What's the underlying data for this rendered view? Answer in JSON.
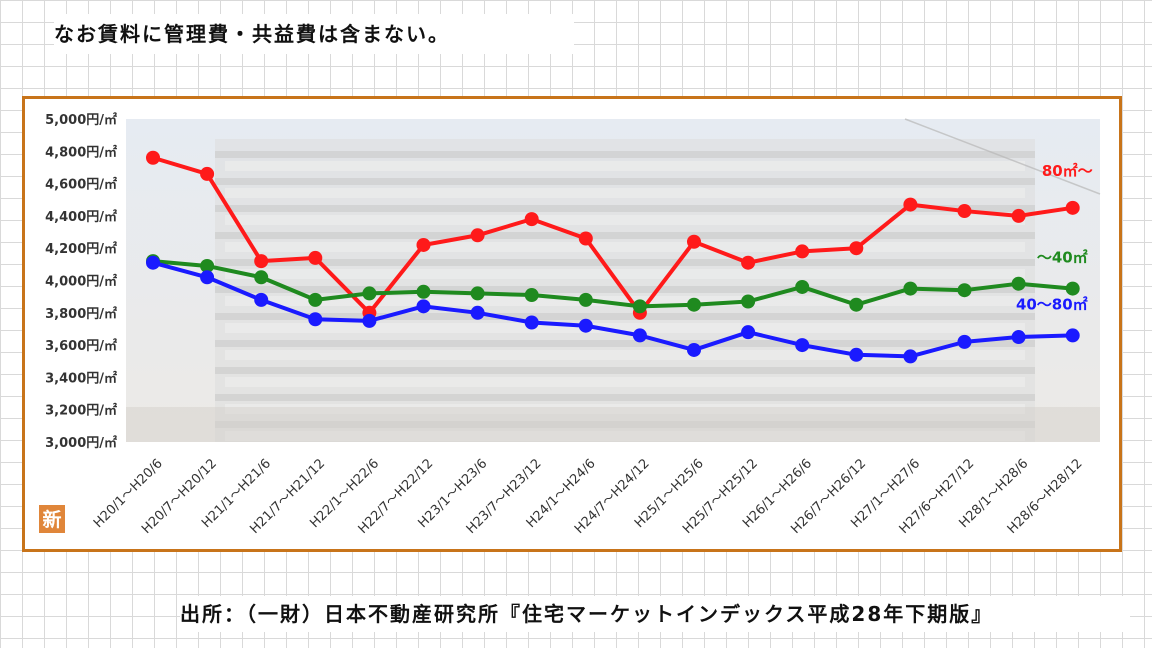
{
  "note_text": "なお賃料に管理費・共益費は含まない。",
  "source_text": "出所：（一財）日本不動産研究所『住宅マーケットインデックス平成28年下期版』",
  "badge_text": "新",
  "chart_data": {
    "type": "line",
    "title": "",
    "xlabel": "",
    "ylabel": "",
    "ylim": [
      3000,
      5000
    ],
    "yticks": [
      3000,
      3200,
      3400,
      3600,
      3800,
      4000,
      4200,
      4400,
      4600,
      4800,
      5000
    ],
    "ytick_labels": [
      "3,000円/㎡",
      "3,200円/㎡",
      "3,400円/㎡",
      "3,600円/㎡",
      "3,800円/㎡",
      "4,000円/㎡",
      "4,200円/㎡",
      "4,400円/㎡",
      "4,600円/㎡",
      "4,800円/㎡",
      "5,000円/㎡"
    ],
    "categories": [
      "H20/1～H20/6",
      "H20/7～H20/12",
      "H21/1～H21/6",
      "H21/7～H21/12",
      "H22/1～H22/6",
      "H22/7～H22/12",
      "H23/1～H23/6",
      "H23/7～H23/12",
      "H24/1～H24/6",
      "H24/7～H24/12",
      "H25/1～H25/6",
      "H25/7～H25/12",
      "H26/1～H26/6",
      "H26/7～H26/12",
      "H27/1～H27/6",
      "H27/6～H27/12",
      "H28/1～H28/6",
      "H28/6～H28/12"
    ],
    "grid": false,
    "series": [
      {
        "name": "80㎡～",
        "color": "#ff1a1a",
        "values": [
          4760,
          4660,
          4120,
          4140,
          3800,
          4220,
          4280,
          4380,
          4260,
          3800,
          4240,
          4110,
          4180,
          4200,
          4470,
          4430,
          4400,
          4450
        ]
      },
      {
        "name": "～40㎡",
        "color": "#1f8a1f",
        "values": [
          4120,
          4090,
          4020,
          3880,
          3920,
          3930,
          3920,
          3910,
          3880,
          3840,
          3850,
          3870,
          3960,
          3850,
          3950,
          3940,
          3980,
          3950
        ]
      },
      {
        "name": "40～80㎡",
        "color": "#1a1aff",
        "values": [
          4110,
          4020,
          3880,
          3760,
          3750,
          3840,
          3800,
          3740,
          3720,
          3660,
          3570,
          3680,
          3600,
          3540,
          3530,
          3620,
          3650,
          3660
        ]
      }
    ]
  }
}
